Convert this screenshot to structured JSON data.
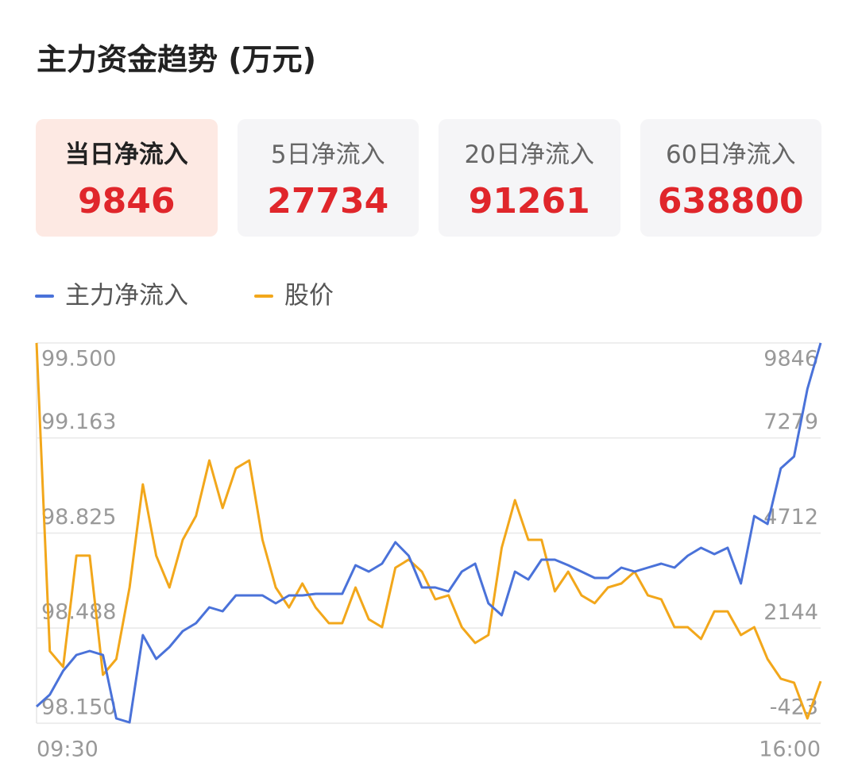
{
  "header": {
    "title": "主力资金趋势 (万元)"
  },
  "cards": [
    {
      "label": "当日净流入",
      "value": 9846
    },
    {
      "label": "5日净流入",
      "value": 27734
    },
    {
      "label": "20日净流入",
      "value": 91261
    },
    {
      "label": "60日净流入",
      "value": 638800
    }
  ],
  "chart_data": {
    "type": "line",
    "series": [
      {
        "name": "主力净流入",
        "color": "#4a72d9",
        "axis": "y2",
        "values": [
          27,
          349,
          992,
          1421,
          1528,
          1421,
          -294,
          -402,
          1957,
          1314,
          1635,
          2064,
          2278,
          2707,
          2600,
          3029,
          3029,
          3029,
          2814,
          3029,
          3029,
          3072,
          3072,
          3072,
          3844,
          3672,
          3886,
          4465,
          4101,
          3243,
          3243,
          3136,
          3672,
          3886,
          2814,
          2493,
          3672,
          3458,
          3994,
          3994,
          3844,
          3672,
          3501,
          3501,
          3779,
          3672,
          3779,
          3886,
          3779,
          4101,
          4315,
          4144,
          4315,
          3350,
          5173,
          4958,
          6459,
          6781,
          8603,
          9846
        ]
      },
      {
        "name": "股价",
        "color": "#f2a71b",
        "values": [
          99.5,
          98.406,
          98.35,
          98.745,
          98.745,
          98.322,
          98.378,
          98.632,
          98.998,
          98.745,
          98.632,
          98.801,
          98.886,
          99.083,
          98.914,
          99.055,
          99.083,
          98.801,
          98.632,
          98.561,
          98.646,
          98.561,
          98.505,
          98.505,
          98.632,
          98.519,
          98.491,
          98.702,
          98.731,
          98.688,
          98.59,
          98.604,
          98.491,
          98.435,
          98.463,
          98.773,
          98.942,
          98.801,
          98.801,
          98.618,
          98.688,
          98.604,
          98.576,
          98.632,
          98.646,
          98.688,
          98.604,
          98.59,
          98.491,
          98.491,
          98.449,
          98.547,
          98.547,
          98.463,
          98.491,
          98.378,
          98.308,
          98.294,
          98.167,
          98.299
        ]
      }
    ],
    "xlim": [
      0,
      59
    ],
    "xticks": [
      {
        "value": 0,
        "label": "09:30"
      },
      {
        "value": 59,
        "label": "16:00"
      }
    ],
    "ylim": [
      98.15,
      99.5
    ],
    "yticks": [
      {
        "value": 98.15,
        "label": "98.150"
      },
      98.488,
      98.825,
      99.163,
      {
        "value": 99.5,
        "label": "99.500"
      }
    ],
    "y2lim": [
      -423,
      9846
    ],
    "y2ticks": [
      -423,
      2144,
      4712,
      7279,
      9846
    ],
    "grid": true
  }
}
